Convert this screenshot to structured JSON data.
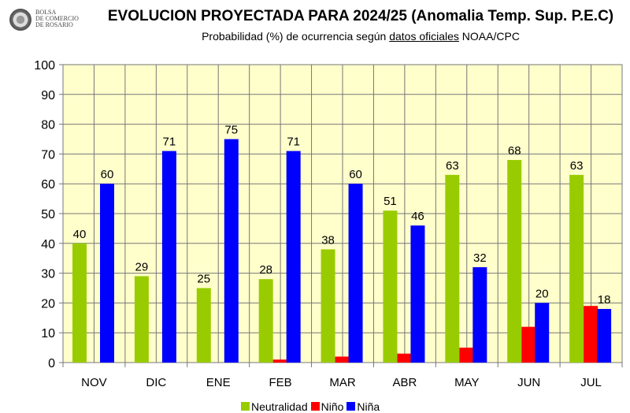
{
  "logo_text": "BOLSA\nDE COMERCIO\nDE ROSARIO",
  "title": "EVOLUCION PROYECTADA PARA 2024/25 (Anomalia Temp. Sup. P.E.C)",
  "subtitle_pre": "Probabilidad (%) de ocurrencia según ",
  "subtitle_link": "datos oficiales",
  "subtitle_post": " NOAA/CPC",
  "chart_data": {
    "type": "bar",
    "title": "EVOLUCION PROYECTADA PARA 2024/25 (Anomalia Temp. Sup. P.E.C)",
    "categories": [
      "NOV",
      "DIC",
      "ENE",
      "FEB",
      "MAR",
      "ABR",
      "MAY",
      "JUN",
      "JUL"
    ],
    "series": [
      {
        "name": "Neutralidad",
        "color": "#99cc00",
        "values": [
          40,
          29,
          25,
          28,
          38,
          51,
          63,
          68,
          63
        ],
        "labels": true
      },
      {
        "name": "Niño",
        "color": "#ff0000",
        "values": [
          0,
          0,
          0,
          1,
          2,
          3,
          5,
          12,
          19
        ],
        "labels": false
      },
      {
        "name": "Niña",
        "color": "#0000ff",
        "values": [
          60,
          71,
          75,
          71,
          60,
          46,
          32,
          20,
          18
        ],
        "labels": true
      }
    ],
    "ylim": [
      0,
      100
    ],
    "yticks": [
      0,
      10,
      20,
      30,
      40,
      50,
      60,
      70,
      80,
      90,
      100
    ],
    "grid": true,
    "plot_background": "#ffffcc",
    "legend": "bottom"
  }
}
